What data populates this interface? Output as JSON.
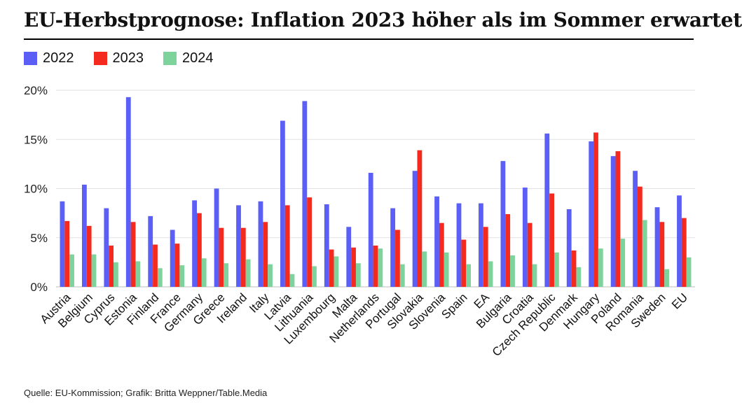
{
  "title": "EU-Herbstprognose: Inflation 2023 höher als im Sommer erwartet",
  "source": "Quelle: EU-Kommission; Grafik: Britta Weppner/Table.Media",
  "chart_data": {
    "type": "bar",
    "title": "EU-Herbstprognose: Inflation 2023 höher als im Sommer erwartet",
    "xlabel": "",
    "ylabel": "",
    "ylim": [
      0,
      20
    ],
    "yticks": [
      0,
      5,
      10,
      15,
      20
    ],
    "ytick_labels": [
      "0%",
      "5%",
      "10%",
      "15%",
      "20%"
    ],
    "grid": true,
    "legend_position": "top-left",
    "categories": [
      "Austria",
      "Belgium",
      "Cyprus",
      "Estonia",
      "Finland",
      "France",
      "Germany",
      "Greece",
      "Ireland",
      "Italy",
      "Latvia",
      "Lithuania",
      "Luxembourg",
      "Malta",
      "Netherlands",
      "Portugal",
      "Slovakia",
      "Slovenia",
      "Spain",
      "EA",
      "Bulgaria",
      "Croatia",
      "Czech Republic",
      "Denmark",
      "Hungary",
      "Poland",
      "Romania",
      "Sweden",
      "EU"
    ],
    "series": [
      {
        "name": "2022",
        "color": "#5b5ff5",
        "values": [
          8.7,
          10.4,
          8.0,
          19.3,
          7.2,
          5.8,
          8.8,
          10.0,
          8.3,
          8.7,
          16.9,
          18.9,
          8.4,
          6.1,
          11.6,
          8.0,
          11.8,
          9.2,
          8.5,
          8.5,
          12.8,
          10.1,
          15.6,
          7.9,
          14.8,
          13.3,
          11.8,
          8.1,
          9.3
        ]
      },
      {
        "name": "2023",
        "color": "#f52a1e",
        "values": [
          6.7,
          6.2,
          4.2,
          6.6,
          4.3,
          4.4,
          7.5,
          6.0,
          6.0,
          6.6,
          8.3,
          9.1,
          3.8,
          4.0,
          4.2,
          5.8,
          13.9,
          6.5,
          4.8,
          6.1,
          7.4,
          6.5,
          9.5,
          3.7,
          15.7,
          13.8,
          10.2,
          6.6,
          7.0
        ]
      },
      {
        "name": "2024",
        "color": "#7dd39b",
        "values": [
          3.3,
          3.3,
          2.5,
          2.6,
          1.9,
          2.2,
          2.9,
          2.4,
          2.8,
          2.3,
          1.3,
          2.1,
          3.1,
          2.4,
          3.9,
          2.3,
          3.6,
          3.5,
          2.3,
          2.6,
          3.2,
          2.3,
          3.5,
          2.0,
          3.9,
          4.9,
          6.8,
          1.8,
          3.0
        ]
      }
    ]
  }
}
